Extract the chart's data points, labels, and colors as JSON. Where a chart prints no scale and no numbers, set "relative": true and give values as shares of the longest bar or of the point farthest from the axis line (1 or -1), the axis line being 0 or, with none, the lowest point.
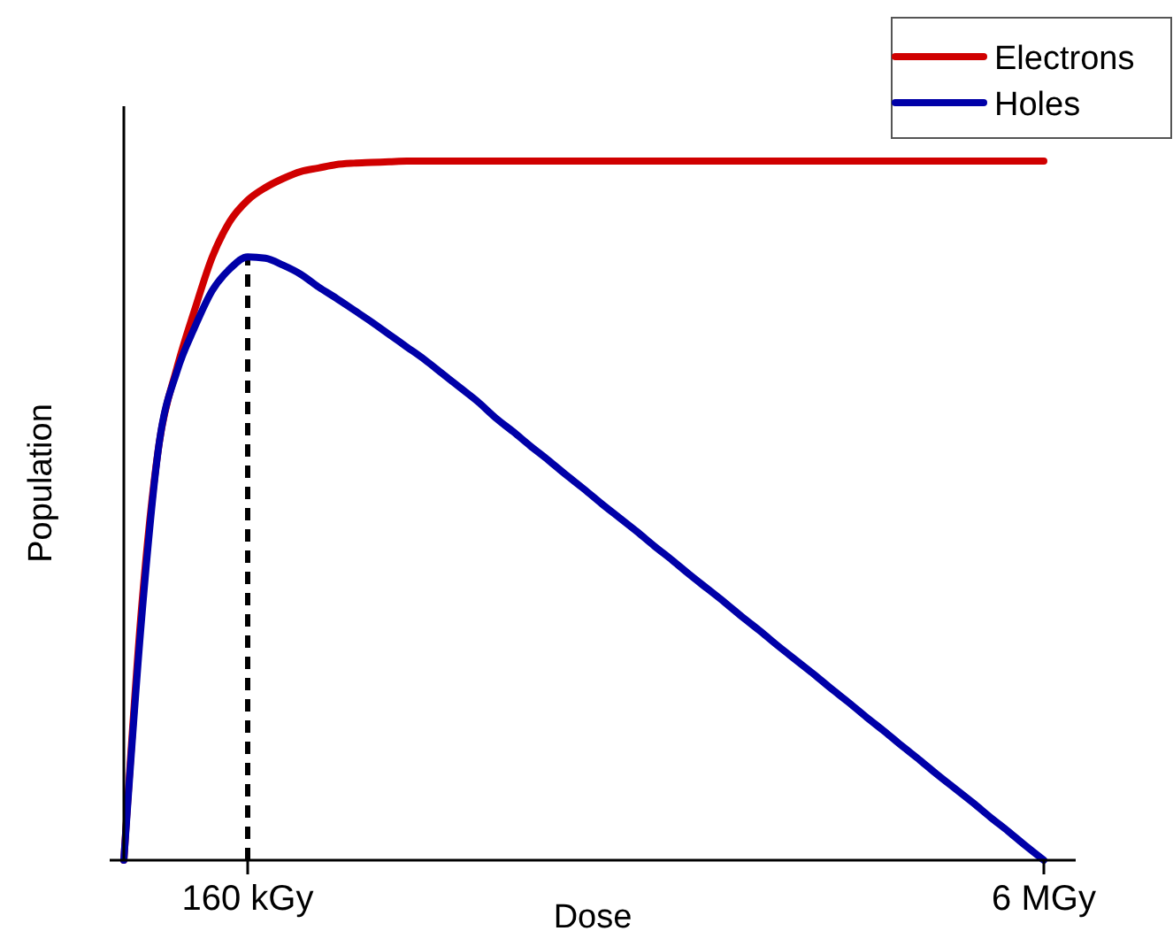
{
  "chart_data": {
    "type": "line",
    "xlabel": "Dose",
    "ylabel": "Population",
    "relative": true,
    "legend": "top right",
    "line_style": "solid",
    "categories": [
      null,
      null,
      null,
      null,
      null,
      null,
      null,
      "160 kGy",
      null,
      null,
      null,
      null,
      null,
      null,
      null,
      null,
      null,
      null,
      null,
      null,
      null,
      null,
      null,
      null,
      null,
      null,
      null,
      null,
      null,
      null,
      null,
      null,
      null,
      null,
      null,
      null,
      null,
      null,
      null,
      null,
      null,
      null,
      null,
      null,
      null,
      null,
      null,
      null,
      null,
      null,
      null,
      null,
      "6 MGy"
    ],
    "series": [
      {
        "name": "Electrons",
        "color": "#d00000",
        "values": [
          0,
          0.36,
          0.597,
          0.704,
          0.787,
          0.863,
          0.914,
          0.944,
          0.962,
          0.975,
          0.985,
          0.99,
          0.995,
          0.997,
          0.998,
          0.999,
          1,
          1,
          1,
          1,
          1,
          1,
          1,
          1,
          1,
          1,
          1,
          1,
          1,
          1,
          1,
          1,
          1,
          1,
          1,
          1,
          1,
          1,
          1,
          1,
          1,
          1,
          1,
          1,
          1,
          1,
          1,
          1,
          1,
          1,
          1,
          1,
          1
        ]
      },
      {
        "name": "Holes",
        "color": "#0000a8",
        "values": [
          0,
          0.344,
          0.597,
          0.699,
          0.762,
          0.815,
          0.846,
          0.863,
          0.861,
          0.851,
          0.838,
          0.82,
          0.804,
          0.787,
          0.77,
          0.752,
          0.734,
          0.716,
          0.696,
          0.676,
          0.656,
          0.633,
          0.613,
          0.592,
          0.572,
          0.551,
          0.531,
          0.51,
          0.49,
          0.47,
          0.449,
          0.429,
          0.408,
          0.388,
          0.368,
          0.347,
          0.327,
          0.306,
          0.286,
          0.266,
          0.245,
          0.225,
          0.204,
          0.184,
          0.163,
          0.143,
          0.122,
          0.102,
          0.082,
          0.061,
          0.041,
          0.02,
          0
        ]
      }
    ],
    "ref_lines": [
      {
        "axis": "x",
        "value": "160 kGy",
        "color": "#000000",
        "line_style": "dashed"
      }
    ]
  }
}
